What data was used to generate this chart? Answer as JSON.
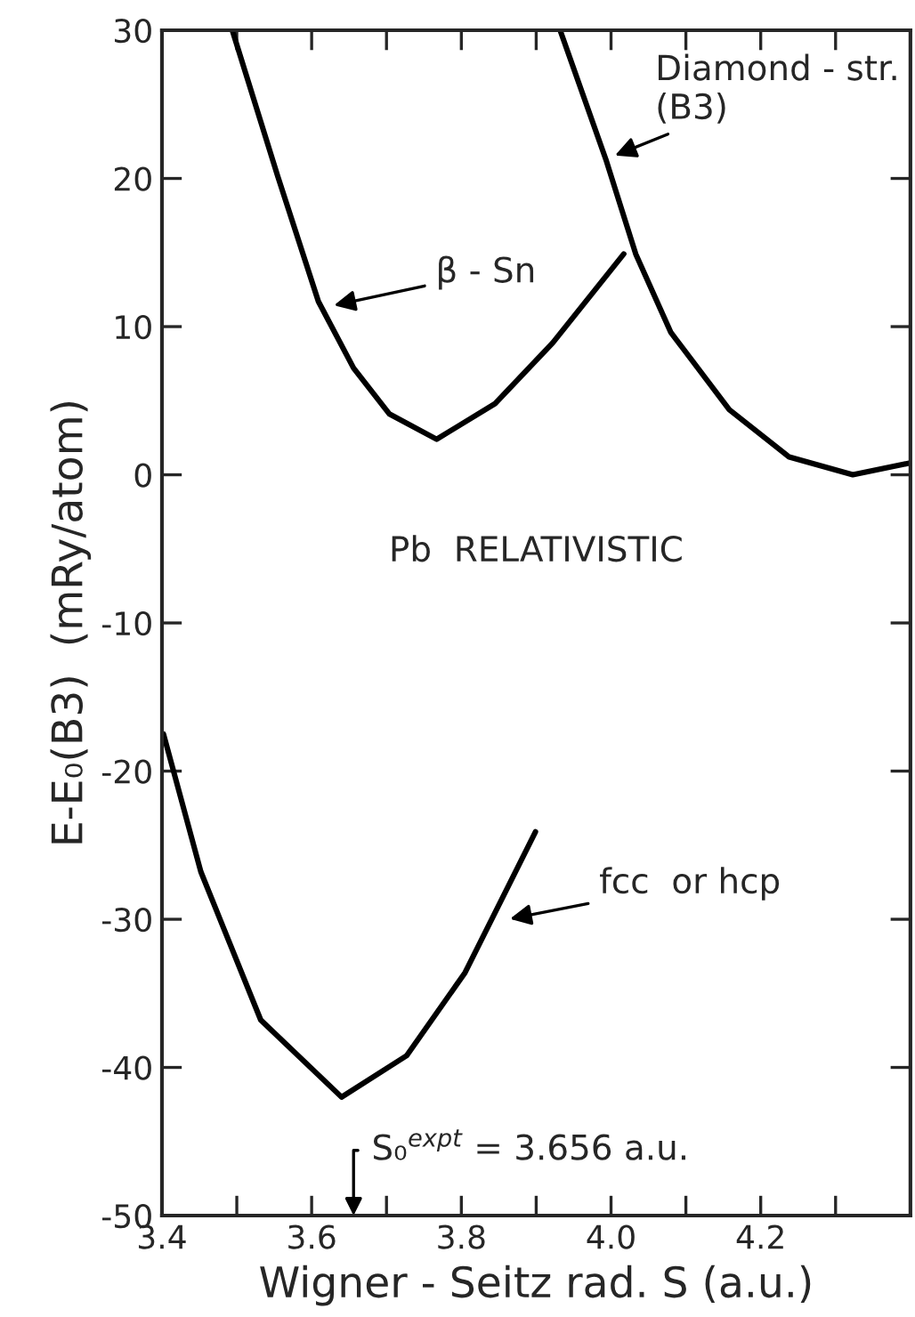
{
  "chart_data": {
    "type": "line",
    "xlabel": "Wigner - Seitz rad. S (a.u.)",
    "ylabel": "E-E₀(B3)  (mRy/atom)",
    "series": [
      {
        "color": "#000000",
        "x": [
          3.494,
          3.555,
          3.609,
          3.656,
          3.704,
          3.767,
          3.845,
          3.922,
          4.017
        ],
        "values": [
          30,
          20.1,
          11.7,
          7.2,
          4.1,
          2.4,
          4.8,
          8.9,
          14.9
        ]
      },
      {
        "color": "#000000",
        "x": [
          3.932,
          3.993,
          4.033,
          4.08,
          4.158,
          4.238,
          4.323,
          4.4
        ],
        "values": [
          30,
          21.3,
          14.9,
          9.6,
          4.4,
          1.2,
          0,
          0.8
        ]
      },
      {
        "color": "#000000",
        "x": [
          3.402,
          3.452,
          3.532,
          3.64,
          3.727,
          3.805,
          3.899
        ],
        "values": [
          -17.5,
          -26.8,
          -36.8,
          -42.0,
          -39.2,
          -33.6,
          -24.1
        ]
      }
    ],
    "annotations": [
      {
        "text": "β - Sn",
        "x": 3.617,
        "y": 11.3
      },
      {
        "text": "Diamond - str.\n(B3)",
        "x": 3.993,
        "y": 21.3
      },
      {
        "text": "fcc  or hcp",
        "x": 3.852,
        "y": -30.1
      },
      "Pb  RELATIVISTIC",
      "S₀$^{expt}$ = 3.656 a.u."
    ],
    "xlim": [
      3.4,
      4.4
    ],
    "xticks": [
      3.4,
      {
        "value": 3.5,
        "label": null
      },
      3.6,
      {
        "value": 3.7,
        "label": null
      },
      3.8,
      {
        "value": 3.9,
        "label": null
      },
      {
        "value": 4.0,
        "label": "4.0"
      },
      {
        "value": 4.1,
        "label": null
      },
      4.2,
      {
        "value": 4.3,
        "label": null
      }
    ],
    "ylim": [
      -50,
      30
    ],
    "yticks": [
      -50,
      -40,
      -30,
      -20,
      -10,
      0,
      10,
      20,
      30
    ],
    "line_style": "solid",
    "marker": "none",
    "grid": false,
    "legend": false
  }
}
